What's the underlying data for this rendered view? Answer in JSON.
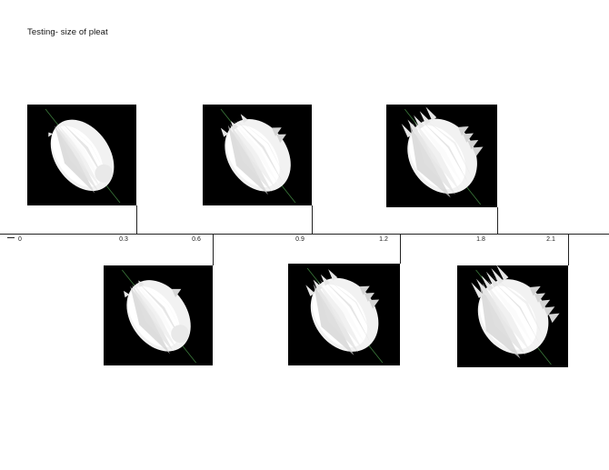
{
  "title": "Testing- size of pleat",
  "colors": {
    "background": "#ffffff",
    "panel": "#000000",
    "line": "#222222",
    "axis_line": "#3c7a3c"
  },
  "axis_ticks": [
    {
      "label": "0"
    },
    {
      "label": "0.3"
    },
    {
      "label": "0.6"
    },
    {
      "label": "0.9"
    },
    {
      "label": "1.2"
    },
    {
      "label": "1.8"
    },
    {
      "label": "2.1"
    }
  ],
  "renders": [
    {
      "name": "render-0-3",
      "pleat": "0.3",
      "spikes": 0
    },
    {
      "name": "render-0-6",
      "pleat": "0.6",
      "spikes": 1
    },
    {
      "name": "render-0-9",
      "pleat": "0.9",
      "spikes": 2
    },
    {
      "name": "render-1-2",
      "pleat": "1.2",
      "spikes": 3
    },
    {
      "name": "render-1-8",
      "pleat": "1.8",
      "spikes": 4
    },
    {
      "name": "render-2-1",
      "pleat": "2.1",
      "spikes": 5
    }
  ]
}
